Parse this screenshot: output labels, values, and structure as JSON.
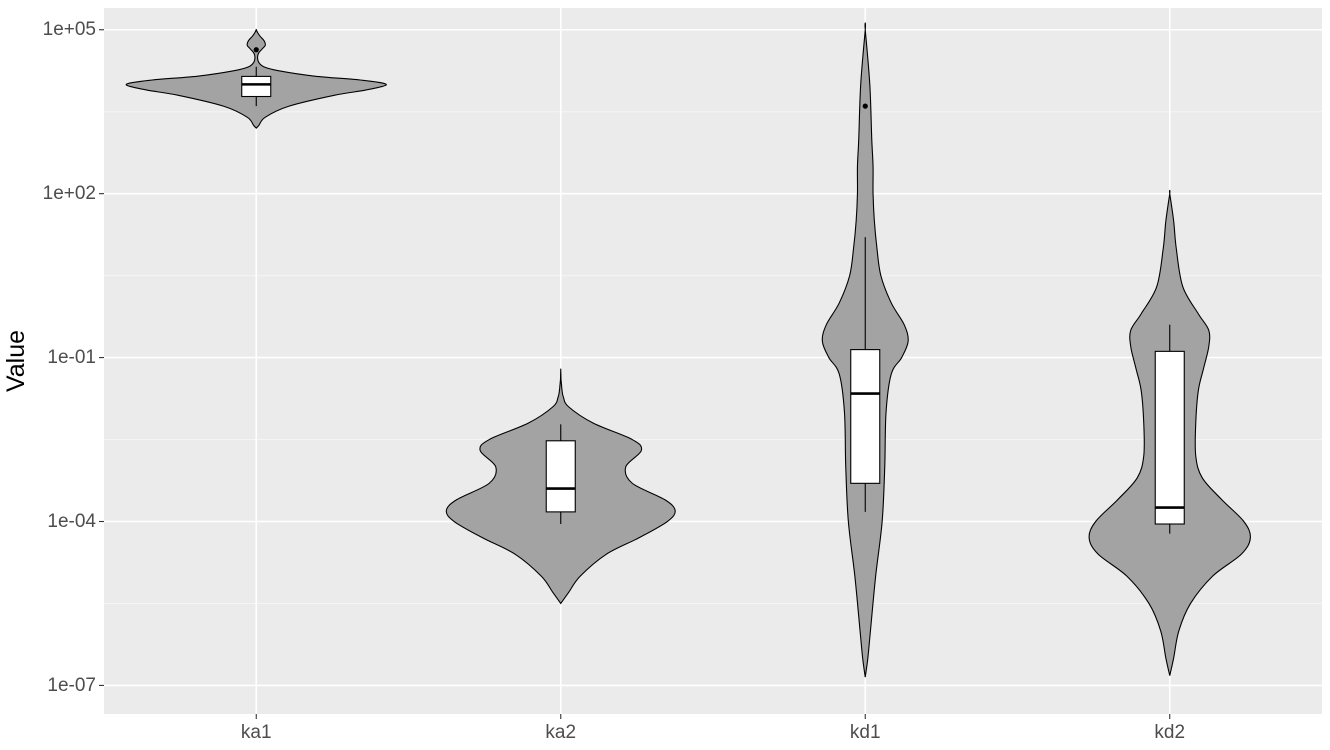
{
  "chart_data": {
    "type": "violin",
    "title": "",
    "xlabel": "",
    "ylabel": "Value",
    "y_scale": "log10",
    "ylim": [
      3e-08,
      250000.0
    ],
    "y_ticks": [
      1e-07,
      0.0001,
      0.1,
      100.0,
      100000.0
    ],
    "y_tick_labels": [
      "1e-07",
      "1e-04",
      "1e-01",
      "1e+02",
      "1e+05"
    ],
    "categories": [
      "ka1",
      "ka2",
      "kd1",
      "kd2"
    ],
    "grid": true,
    "legend": "none",
    "colors": {
      "panel": "#ebebeb",
      "grid_major": "#ffffff",
      "grid_minor": "#f5f5f5",
      "violin_fill": "#a3a3a3",
      "box_fill": "#ffffff",
      "outline": "#000000",
      "tick_text": "#4d4d4d"
    },
    "groups": [
      {
        "name": "ka1",
        "violin_min": 1500.0,
        "violin_max": 100000.0,
        "density_profile": [
          [
            3.2,
            0
          ],
          [
            3.25,
            0.02
          ],
          [
            3.4,
            0.07
          ],
          [
            3.6,
            0.25
          ],
          [
            3.8,
            0.6
          ],
          [
            3.9,
            0.85
          ],
          [
            4.0,
            1.0
          ],
          [
            4.08,
            0.8
          ],
          [
            4.15,
            0.45
          ],
          [
            4.25,
            0.17
          ],
          [
            4.32,
            0.06
          ],
          [
            4.4,
            0.02
          ],
          [
            4.5,
            0.01
          ],
          [
            4.58,
            0.02
          ],
          [
            4.66,
            0.05
          ],
          [
            4.72,
            0.07
          ],
          [
            4.8,
            0.06
          ],
          [
            4.88,
            0.03
          ],
          [
            4.95,
            0.01
          ],
          [
            5.0,
            0
          ]
        ],
        "box": {
          "lower_whisker": 4000.0,
          "q1": 6000.0,
          "median": 10000.0,
          "q3": 14000.0,
          "upper_whisker": 21000.0
        },
        "outliers": [
          43000.0
        ]
      },
      {
        "name": "ka2",
        "violin_min": 3e-06,
        "violin_max": 0.06,
        "density_profile": [
          [
            -5.5,
            0
          ],
          [
            -5.3,
            0.06
          ],
          [
            -5.0,
            0.15
          ],
          [
            -4.6,
            0.35
          ],
          [
            -4.3,
            0.6
          ],
          [
            -4.0,
            0.82
          ],
          [
            -3.8,
            0.88
          ],
          [
            -3.6,
            0.8
          ],
          [
            -3.3,
            0.55
          ],
          [
            -3.0,
            0.5
          ],
          [
            -2.7,
            0.62
          ],
          [
            -2.5,
            0.55
          ],
          [
            -2.2,
            0.25
          ],
          [
            -1.9,
            0.06
          ],
          [
            -1.72,
            0.02
          ],
          [
            -1.6,
            0.01
          ],
          [
            -1.5,
            0.006
          ],
          [
            -1.4,
            0.002
          ],
          [
            -1.3,
            0.001
          ],
          [
            -1.22,
            0
          ]
        ],
        "box": {
          "lower_whisker": 9e-05,
          "q1": 0.00015,
          "median": 0.0004,
          "q3": 0.003,
          "upper_whisker": 0.006
        },
        "outliers": []
      },
      {
        "name": "kd1",
        "violin_min": 1.5e-07,
        "violin_max": 100000.0,
        "density_profile": [
          [
            -6.85,
            0
          ],
          [
            -6.5,
            0.02
          ],
          [
            -6.0,
            0.04
          ],
          [
            -5.0,
            0.08
          ],
          [
            -4.0,
            0.13
          ],
          [
            -3.0,
            0.15
          ],
          [
            -2.0,
            0.16
          ],
          [
            -1.3,
            0.2
          ],
          [
            -1.0,
            0.28
          ],
          [
            -0.7,
            0.33
          ],
          [
            -0.4,
            0.3
          ],
          [
            0.0,
            0.2
          ],
          [
            0.5,
            0.12
          ],
          [
            1.0,
            0.09
          ],
          [
            1.5,
            0.07
          ],
          [
            2.0,
            0.06
          ],
          [
            2.5,
            0.06
          ],
          [
            3.0,
            0.05
          ],
          [
            4.0,
            0.035
          ],
          [
            5.0,
            0
          ]
        ],
        "box": {
          "lower_whisker": 0.00015,
          "q1": 0.0005,
          "median": 0.022,
          "q3": 0.14,
          "upper_whisker": 16
        },
        "outliers": [
          4000.0
        ]
      },
      {
        "name": "kd2",
        "violin_min": 1.5e-07,
        "violin_max": 100,
        "density_profile": [
          [
            -6.82,
            0
          ],
          [
            -6.5,
            0.03
          ],
          [
            -6.0,
            0.07
          ],
          [
            -5.5,
            0.16
          ],
          [
            -5.0,
            0.33
          ],
          [
            -4.6,
            0.55
          ],
          [
            -4.3,
            0.62
          ],
          [
            -4.0,
            0.57
          ],
          [
            -3.6,
            0.4
          ],
          [
            -3.2,
            0.25
          ],
          [
            -2.8,
            0.2
          ],
          [
            -2.2,
            0.2
          ],
          [
            -1.6,
            0.22
          ],
          [
            -1.2,
            0.26
          ],
          [
            -0.8,
            0.3
          ],
          [
            -0.5,
            0.3
          ],
          [
            -0.2,
            0.22
          ],
          [
            0.3,
            0.1
          ],
          [
            1.0,
            0.05
          ],
          [
            1.5,
            0.03
          ],
          [
            2.0,
            0
          ]
        ],
        "box": {
          "lower_whisker": 6e-05,
          "q1": 9e-05,
          "median": 0.00018,
          "q3": 0.13,
          "upper_whisker": 0.4
        },
        "outliers": []
      }
    ]
  }
}
